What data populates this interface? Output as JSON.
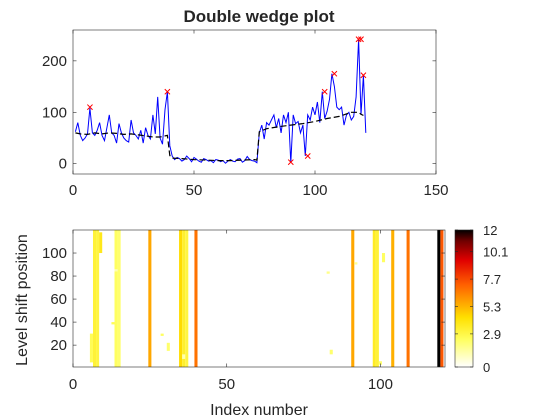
{
  "figure": {
    "title": "Double wedge plot"
  },
  "chart_data": [
    {
      "type": "line",
      "title": "Double wedge plot",
      "xlim": [
        0,
        150
      ],
      "ylim": [
        -20,
        260
      ],
      "xticks": [
        0,
        50,
        100,
        150
      ],
      "yticks": [
        0,
        100,
        200
      ],
      "grid": false,
      "series": [
        {
          "style": "blue-line",
          "color": "#0000ff",
          "x": [
            1,
            2,
            3,
            4,
            5,
            6,
            7,
            8,
            9,
            10,
            11,
            12,
            13,
            14,
            15,
            16,
            17,
            18,
            19,
            20,
            21,
            22,
            23,
            24,
            25,
            26,
            27,
            28,
            29,
            30,
            31,
            32,
            33,
            34,
            35,
            36,
            37,
            38,
            39,
            40,
            41,
            42,
            43,
            44,
            45,
            46,
            47,
            48,
            49,
            50,
            51,
            52,
            53,
            54,
            55,
            56,
            57,
            58,
            59,
            60,
            61,
            62,
            63,
            64,
            65,
            66,
            67,
            68,
            69,
            70,
            71,
            72,
            73,
            74,
            75,
            76,
            77,
            78,
            79,
            80,
            81,
            82,
            83,
            84,
            85,
            86,
            87,
            88,
            89,
            90,
            91,
            92,
            93,
            94,
            95,
            96,
            97,
            98,
            99,
            100,
            101,
            102,
            103,
            104,
            105,
            106,
            107,
            108,
            109,
            110,
            111,
            112,
            113,
            114,
            115,
            116,
            117,
            118,
            119,
            120,
            121
          ],
          "y": [
            62,
            80,
            55,
            45,
            50,
            58,
            108,
            60,
            55,
            65,
            80,
            55,
            45,
            70,
            95,
            60,
            55,
            40,
            78,
            60,
            50,
            45,
            42,
            85,
            60,
            55,
            48,
            65,
            40,
            70,
            55,
            48,
            95,
            58,
            130,
            50,
            38,
            105,
            140,
            35,
            15,
            8,
            12,
            10,
            5,
            8,
            15,
            10,
            4,
            12,
            9,
            5,
            3,
            10,
            8,
            5,
            6,
            2,
            8,
            7,
            4,
            6,
            1,
            5,
            8,
            5,
            4,
            9,
            10,
            3,
            6,
            14,
            8,
            6,
            5,
            2,
            60,
            75,
            48,
            80,
            75,
            85,
            95,
            70,
            88,
            60,
            95,
            80,
            100,
            2,
            95,
            78,
            82,
            60,
            75,
            15,
            95,
            85,
            110,
            95,
            120,
            80,
            140,
            88,
            102,
            125,
            175,
            150,
            110,
            105,
            110,
            75,
            95,
            100,
            85,
            92,
            130,
            242,
            95,
            172,
            60
          ]
        },
        {
          "style": "black-dashed",
          "color": "#000000",
          "x": [
            1,
            3,
            6,
            9,
            12,
            15,
            18,
            21,
            24,
            27,
            30,
            33,
            36,
            39,
            40,
            41,
            45,
            50,
            55,
            60,
            65,
            70,
            75,
            76,
            77,
            80,
            85,
            90,
            95,
            100,
            105,
            110,
            115,
            118,
            119,
            120
          ],
          "y": [
            60,
            58,
            57,
            60,
            58,
            60,
            59,
            57,
            58,
            56,
            54,
            52,
            52,
            55,
            16,
            11,
            10,
            8,
            7,
            6,
            6,
            7,
            8,
            7,
            62,
            68,
            72,
            75,
            78,
            82,
            88,
            92,
            100,
            100,
            96,
            94
          ]
        },
        {
          "style": "red-markers",
          "color": "#ff0000",
          "x": [
            7,
            39,
            90,
            97,
            104,
            108,
            118,
            119,
            120
          ],
          "y": [
            110,
            140,
            3,
            15,
            140,
            175,
            242,
            242,
            172
          ]
        }
      ]
    },
    {
      "type": "heatmap",
      "xlabel": "Index number",
      "ylabel": "Level shift position",
      "xlim": [
        0,
        121
      ],
      "ylim": [
        1,
        120
      ],
      "xticks": [
        0,
        50,
        100
      ],
      "yticks": [
        20,
        40,
        60,
        80,
        100
      ],
      "colorbar": {
        "ticks": [
          0,
          2.9,
          5.3,
          7.7,
          10.1,
          12
        ],
        "tick_labels": [
          "0",
          "2.9",
          "5.3",
          "7.7",
          "10.1",
          "12"
        ],
        "range": [
          0,
          12
        ],
        "colormap": "hot-reversed"
      },
      "columns": [
        {
          "x": 7,
          "value": 3.2
        },
        {
          "x": 8,
          "value": 3.0
        },
        {
          "x": 14,
          "value": 2.4
        },
        {
          "x": 15,
          "value": 2.2
        },
        {
          "x": 25,
          "value": 5.6
        },
        {
          "x": 35,
          "value": 4.4
        },
        {
          "x": 36,
          "value": 3.4
        },
        {
          "x": 37,
          "value": 3.0
        },
        {
          "x": 40,
          "value": 6.8
        },
        {
          "x": 91,
          "value": 5.6
        },
        {
          "x": 98,
          "value": 3.6
        },
        {
          "x": 99,
          "value": 3.2
        },
        {
          "x": 104,
          "value": 5.4
        },
        {
          "x": 109,
          "value": 6.8
        },
        {
          "x": 119,
          "value": 12
        },
        {
          "x": 120,
          "value": 7.4
        }
      ],
      "speckles": [
        {
          "x": 6,
          "y_from": 5,
          "y_to": 30,
          "value": 2.6
        },
        {
          "x": 9,
          "y_from": 100,
          "y_to": 118,
          "value": 3.8
        },
        {
          "x": 13,
          "y_from": 38,
          "y_to": 40,
          "value": 2.6
        },
        {
          "x": 14,
          "y_from": 84,
          "y_to": 86,
          "value": 1.2
        },
        {
          "x": 29,
          "y_from": 28,
          "y_to": 30,
          "value": 2.4
        },
        {
          "x": 31,
          "y_from": 15,
          "y_to": 22,
          "value": 2.2
        },
        {
          "x": 36,
          "y_from": 8,
          "y_to": 12,
          "value": 1.2
        },
        {
          "x": 83,
          "y_from": 82,
          "y_to": 84,
          "value": 1.8
        },
        {
          "x": 84,
          "y_from": 12,
          "y_to": 16,
          "value": 2.2
        },
        {
          "x": 92,
          "y_from": 90,
          "y_to": 92,
          "value": 1.6
        },
        {
          "x": 101,
          "y_from": 92,
          "y_to": 100,
          "value": 2.4
        },
        {
          "x": 100,
          "y_from": 3,
          "y_to": 6,
          "value": 2.2
        }
      ]
    }
  ]
}
